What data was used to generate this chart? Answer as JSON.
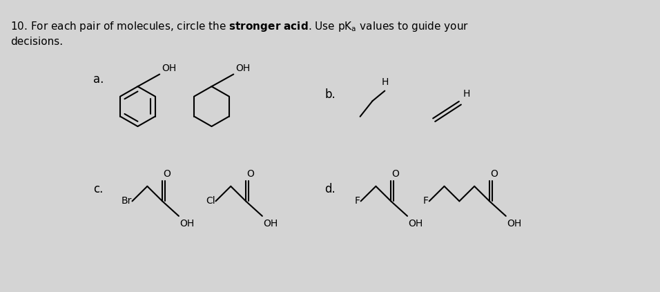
{
  "bg_color": "#d4d4d4",
  "text_color": "#000000",
  "label_a": "a.",
  "label_b": "b.",
  "label_c": "c.",
  "label_d": "d."
}
